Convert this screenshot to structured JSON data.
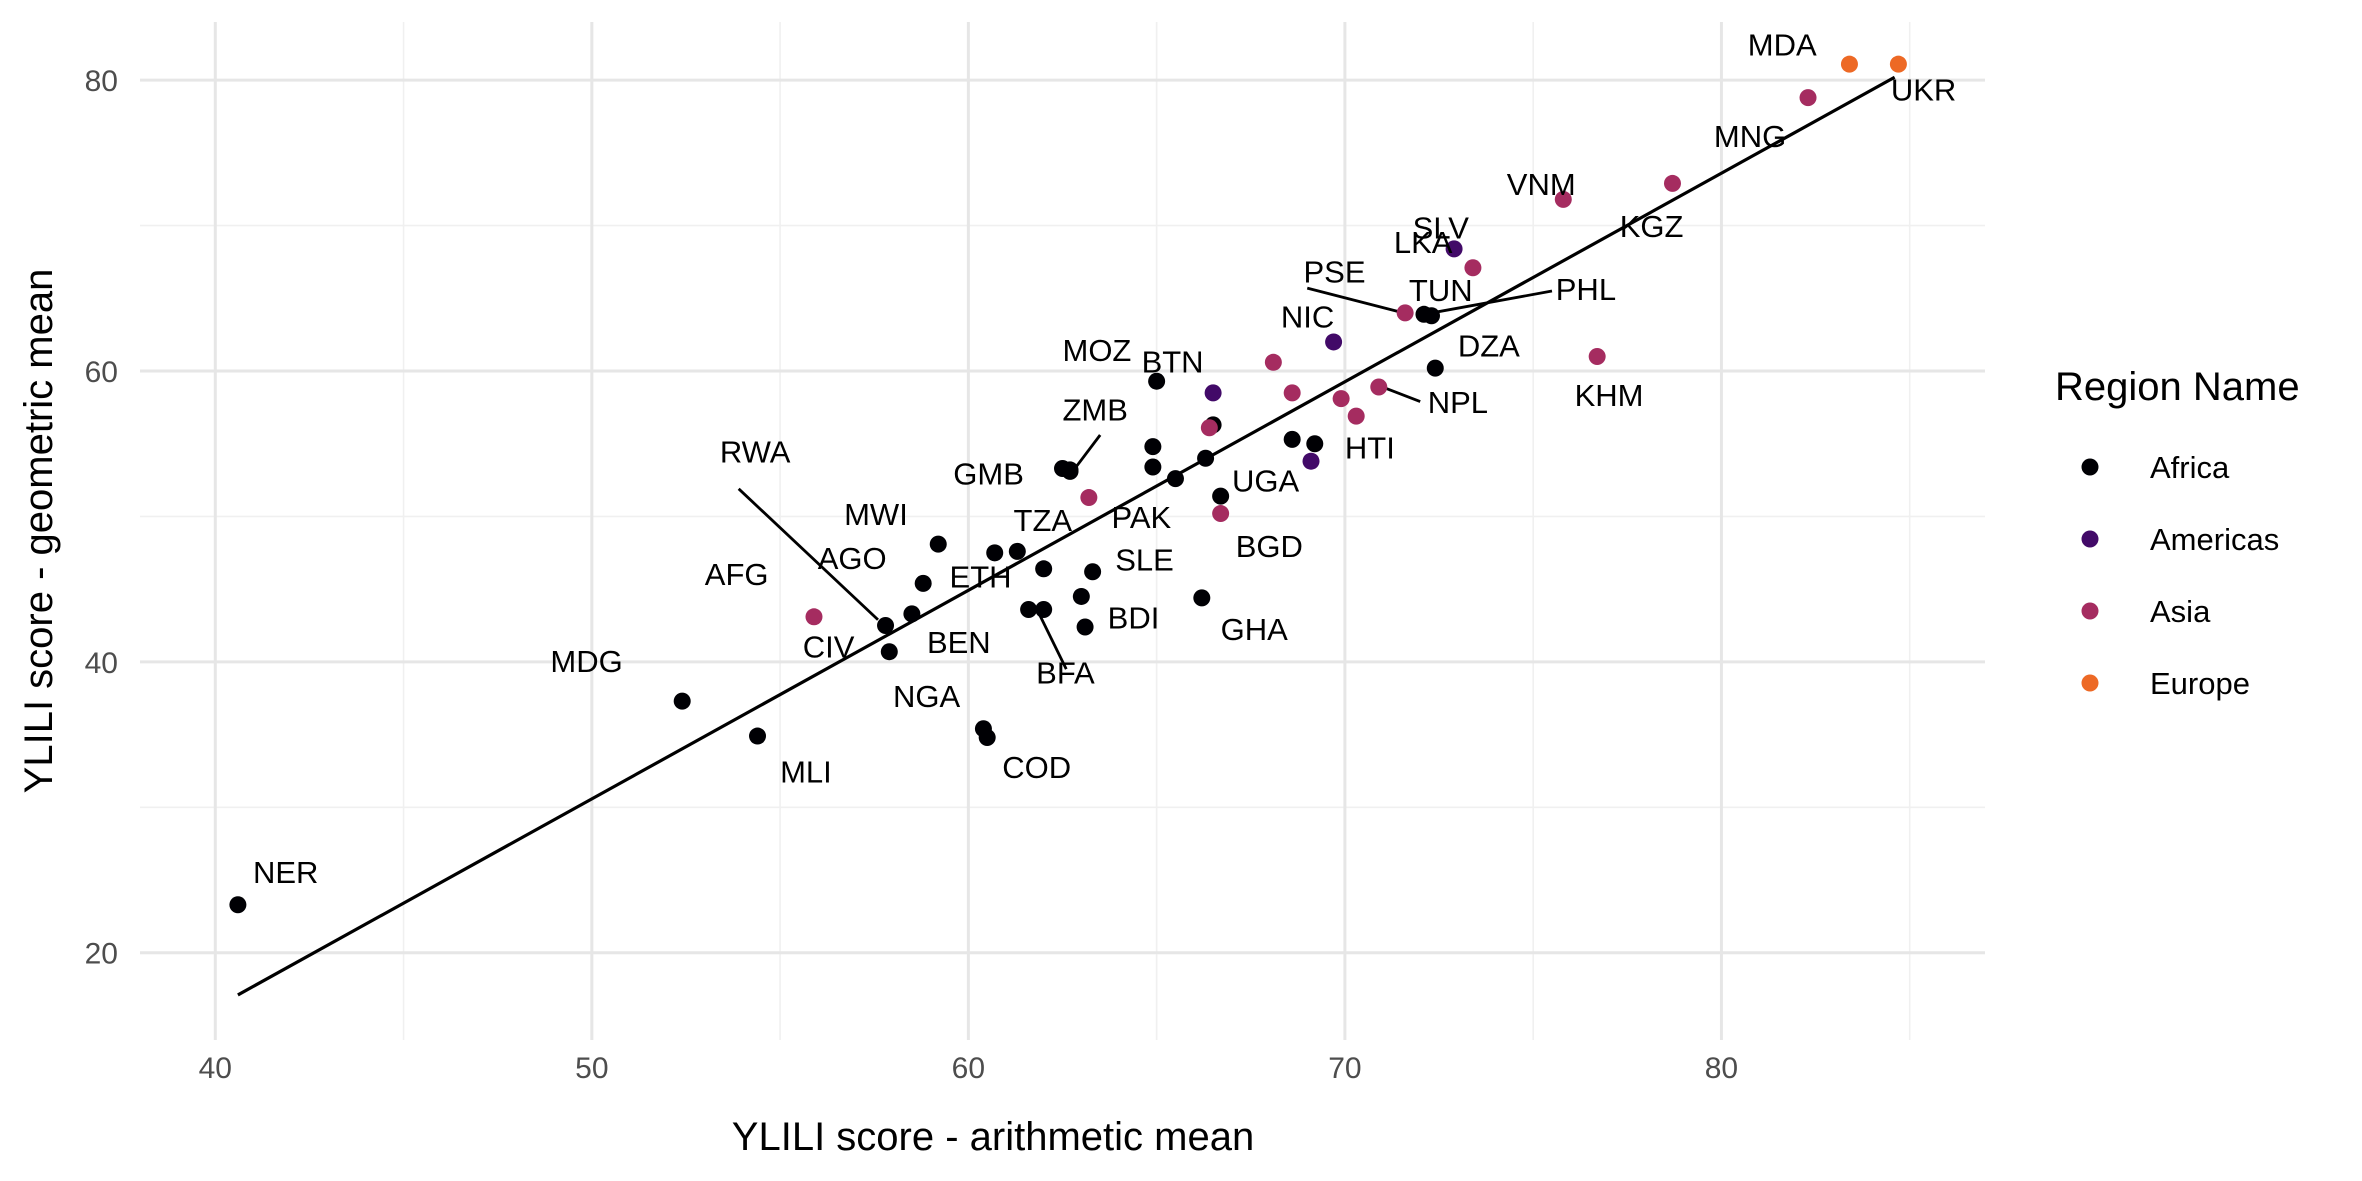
{
  "chart_data": {
    "type": "scatter",
    "xlabel": "YLILI score - arithmetic mean",
    "ylabel": "YLILI score - geometric mean",
    "xlim": [
      38,
      87
    ],
    "ylim": [
      14,
      84
    ],
    "xticks": [
      40,
      50,
      60,
      70,
      80
    ],
    "yticks": [
      20,
      40,
      60,
      80
    ],
    "grid": true,
    "fit_line": {
      "x": [
        40.6,
        84.6
      ],
      "y": [
        17.1,
        80.2
      ]
    },
    "legend": {
      "title": "Region Name",
      "position": "right",
      "entries": [
        {
          "name": "Africa",
          "color": "#000004"
        },
        {
          "name": "Americas",
          "color": "#420a68"
        },
        {
          "name": "Asia",
          "color": "#a52c60"
        },
        {
          "name": "Europe",
          "color": "#ed6925"
        }
      ]
    },
    "points": [
      {
        "x": 40.6,
        "y": 23.3,
        "region": "Africa",
        "label": "NER"
      },
      {
        "x": 52.4,
        "y": 37.3,
        "region": "Africa",
        "label": "MDG"
      },
      {
        "x": 54.4,
        "y": 34.9,
        "region": "Africa",
        "label": "MLI"
      },
      {
        "x": 55.9,
        "y": 43.1,
        "region": "Asia",
        "label": "AFG"
      },
      {
        "x": 57.8,
        "y": 42.5,
        "region": "Africa",
        "label": "RWA"
      },
      {
        "x": 57.9,
        "y": 40.7,
        "region": "Africa",
        "label": "CIV"
      },
      {
        "x": 58.5,
        "y": 43.3,
        "region": "Africa",
        "label": "AGO"
      },
      {
        "x": 58.8,
        "y": 45.4,
        "region": "Africa",
        "label": "ETH"
      },
      {
        "x": 59.2,
        "y": 48.1,
        "region": "Africa",
        "label": "MWI"
      },
      {
        "x": 60.4,
        "y": 35.4,
        "region": "Africa",
        "label": "NGA"
      },
      {
        "x": 60.5,
        "y": 34.8,
        "region": "Africa",
        "label": "COD"
      },
      {
        "x": 60.7,
        "y": 47.5,
        "region": "Africa",
        "label": null
      },
      {
        "x": 61.3,
        "y": 47.6,
        "region": "Africa",
        "label": "TZA"
      },
      {
        "x": 61.6,
        "y": 43.6,
        "region": "Africa",
        "label": "BEN"
      },
      {
        "x": 62.0,
        "y": 46.4,
        "region": "Africa",
        "label": null
      },
      {
        "x": 62.0,
        "y": 43.6,
        "region": "Africa",
        "label": "BFA"
      },
      {
        "x": 62.5,
        "y": 53.3,
        "region": "Africa",
        "label": null
      },
      {
        "x": 62.7,
        "y": 53.2,
        "region": "Africa",
        "label": "ZMB"
      },
      {
        "x": 62.7,
        "y": 53.1,
        "region": "Africa",
        "label": "GMB"
      },
      {
        "x": 63.0,
        "y": 44.5,
        "region": "Africa",
        "label": null
      },
      {
        "x": 63.1,
        "y": 42.4,
        "region": "Africa",
        "label": "BDI"
      },
      {
        "x": 63.2,
        "y": 51.3,
        "region": "Asia",
        "label": "PAK"
      },
      {
        "x": 63.3,
        "y": 46.2,
        "region": "Africa",
        "label": "SLE"
      },
      {
        "x": 65.0,
        "y": 59.3,
        "region": "Africa",
        "label": "MOZ"
      },
      {
        "x": 64.9,
        "y": 54.8,
        "region": "Africa",
        "label": null
      },
      {
        "x": 64.9,
        "y": 53.4,
        "region": "Africa",
        "label": null
      },
      {
        "x": 65.5,
        "y": 52.6,
        "region": "Africa",
        "label": null
      },
      {
        "x": 66.2,
        "y": 44.4,
        "region": "Africa",
        "label": "GHA"
      },
      {
        "x": 66.3,
        "y": 54.0,
        "region": "Africa",
        "label": null
      },
      {
        "x": 66.5,
        "y": 56.3,
        "region": "Africa",
        "label": null
      },
      {
        "x": 66.4,
        "y": 56.1,
        "region": "Asia",
        "label": null
      },
      {
        "x": 66.5,
        "y": 58.5,
        "region": "Americas",
        "label": "BTN"
      },
      {
        "x": 66.7,
        "y": 51.4,
        "region": "Africa",
        "label": "UGA"
      },
      {
        "x": 66.7,
        "y": 50.2,
        "region": "Asia",
        "label": "BGD"
      },
      {
        "x": 68.1,
        "y": 60.6,
        "region": "Asia",
        "label": null
      },
      {
        "x": 68.6,
        "y": 58.5,
        "region": "Asia",
        "label": null
      },
      {
        "x": 68.6,
        "y": 55.3,
        "region": "Africa",
        "label": null
      },
      {
        "x": 69.1,
        "y": 53.8,
        "region": "Americas",
        "label": null
      },
      {
        "x": 69.2,
        "y": 55.0,
        "region": "Africa",
        "label": null
      },
      {
        "x": 69.7,
        "y": 62.0,
        "region": "Americas",
        "label": "NIC"
      },
      {
        "x": 69.9,
        "y": 58.1,
        "region": "Asia",
        "label": null
      },
      {
        "x": 70.3,
        "y": 56.9,
        "region": "Asia",
        "label": "HTI"
      },
      {
        "x": 70.9,
        "y": 58.9,
        "region": "Asia",
        "label": "NPL"
      },
      {
        "x": 71.6,
        "y": 64.0,
        "region": "Asia",
        "label": "PSE"
      },
      {
        "x": 72.1,
        "y": 63.9,
        "region": "Africa",
        "label": "TUN"
      },
      {
        "x": 72.3,
        "y": 63.8,
        "region": "Africa",
        "label": "PHL"
      },
      {
        "x": 72.4,
        "y": 60.2,
        "region": "Africa",
        "label": "DZA"
      },
      {
        "x": 72.9,
        "y": 68.4,
        "region": "Americas",
        "label": "SLV"
      },
      {
        "x": 73.4,
        "y": 67.1,
        "region": "Asia",
        "label": "LKA"
      },
      {
        "x": 75.8,
        "y": 71.8,
        "region": "Asia",
        "label": "VNM"
      },
      {
        "x": 76.7,
        "y": 61.0,
        "region": "Asia",
        "label": "KHM"
      },
      {
        "x": 78.7,
        "y": 72.9,
        "region": "Asia",
        "label": "KGZ"
      },
      {
        "x": 82.3,
        "y": 78.8,
        "region": "Asia",
        "label": "MNG"
      },
      {
        "x": 83.4,
        "y": 81.1,
        "region": "Europe",
        "label": "MDA"
      },
      {
        "x": 84.7,
        "y": 81.1,
        "region": "Europe",
        "label": "UKR"
      }
    ],
    "text_labels": [
      {
        "text": "NER",
        "x": 41.0,
        "y": 24.8
      },
      {
        "text": "MDG",
        "x": 48.9,
        "y": 39.3
      },
      {
        "text": "MLI",
        "x": 55.0,
        "y": 31.7
      },
      {
        "text": "AFG",
        "x": 53.0,
        "y": 45.3
      },
      {
        "text": "RWA",
        "x": 53.4,
        "y": 53.7
      },
      {
        "text": "CIV",
        "x": 55.6,
        "y": 40.3
      },
      {
        "text": "AGO",
        "x": 56.0,
        "y": 46.4
      },
      {
        "text": "ETH",
        "x": 59.5,
        "y": 45.1
      },
      {
        "text": "MWI",
        "x": 56.7,
        "y": 49.4
      },
      {
        "text": "NGA",
        "x": 58.0,
        "y": 36.9
      },
      {
        "text": "COD",
        "x": 60.9,
        "y": 32.0
      },
      {
        "text": "TZA",
        "x": 61.2,
        "y": 49.0
      },
      {
        "text": "BEN",
        "x": 58.9,
        "y": 40.6
      },
      {
        "text": "BFA",
        "x": 61.8,
        "y": 38.5
      },
      {
        "text": "ZMB",
        "x": 62.5,
        "y": 56.6
      },
      {
        "text": "GMB",
        "x": 59.6,
        "y": 52.2
      },
      {
        "text": "BDI",
        "x": 63.7,
        "y": 42.3
      },
      {
        "text": "PAK",
        "x": 63.8,
        "y": 49.2
      },
      {
        "text": "SLE",
        "x": 63.9,
        "y": 46.3
      },
      {
        "text": "MOZ",
        "x": 62.5,
        "y": 60.7
      },
      {
        "text": "GHA",
        "x": 66.7,
        "y": 41.5
      },
      {
        "text": "BTN",
        "x": 64.6,
        "y": 59.9
      },
      {
        "text": "UGA",
        "x": 67.0,
        "y": 51.7
      },
      {
        "text": "BGD",
        "x": 67.1,
        "y": 47.2
      },
      {
        "text": "NIC",
        "x": 68.3,
        "y": 63.0
      },
      {
        "text": "HTI",
        "x": 70.0,
        "y": 54.0
      },
      {
        "text": "NPL",
        "x": 72.2,
        "y": 57.1
      },
      {
        "text": "PSE",
        "x": 68.9,
        "y": 66.1
      },
      {
        "text": "TUN",
        "x": 71.7,
        "y": 64.8
      },
      {
        "text": "PHL",
        "x": 75.6,
        "y": 64.9
      },
      {
        "text": "DZA",
        "x": 73.0,
        "y": 61.0
      },
      {
        "text": "SLV",
        "x": 71.8,
        "y": 69.1
      },
      {
        "text": "LKA",
        "x": 71.3,
        "y": 68.1
      },
      {
        "text": "VNM",
        "x": 74.3,
        "y": 72.1
      },
      {
        "text": "KHM",
        "x": 76.1,
        "y": 57.6
      },
      {
        "text": "KGZ",
        "x": 77.3,
        "y": 69.2
      },
      {
        "text": "MNG",
        "x": 79.8,
        "y": 75.4
      },
      {
        "text": "MDA",
        "x": 80.7,
        "y": 81.7
      },
      {
        "text": "UKR",
        "x": 84.5,
        "y": 78.6
      }
    ],
    "segments": [
      {
        "from": [
          53.9,
          51.9
        ],
        "to": [
          57.6,
          42.9
        ]
      },
      {
        "from": [
          61.9,
          43.2
        ],
        "to": [
          62.6,
          39.5
        ]
      },
      {
        "from": [
          62.8,
          53.2
        ],
        "to": [
          63.5,
          55.6
        ]
      },
      {
        "from": [
          69.0,
          65.7
        ],
        "to": [
          71.4,
          64.1
        ]
      },
      {
        "from": [
          72.1,
          63.9
        ],
        "to": [
          75.5,
          65.5
        ]
      },
      {
        "from": [
          71.0,
          58.9
        ],
        "to": [
          72.0,
          57.9
        ]
      }
    ]
  }
}
